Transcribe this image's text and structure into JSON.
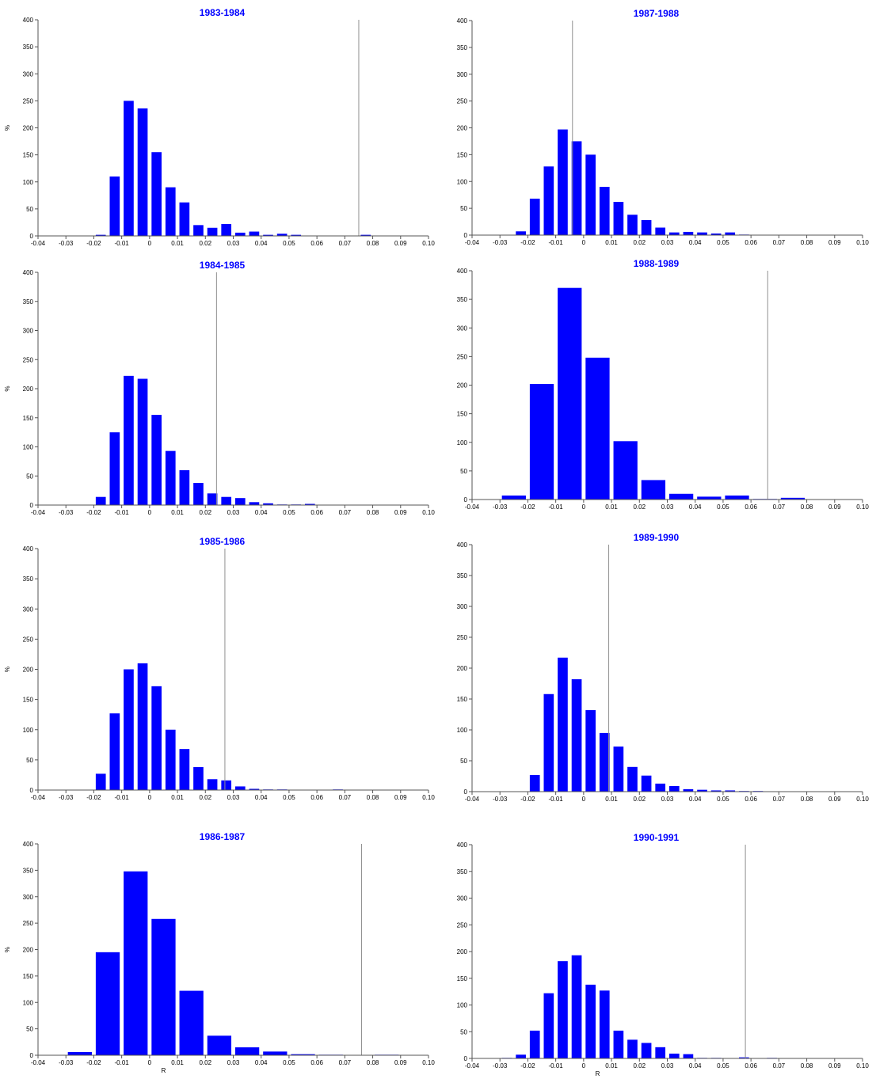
{
  "chart_data": [
    {
      "type": "bar",
      "title": "1983-1984",
      "xlabel": "",
      "ylabel": "%",
      "xlim": [
        -0.04,
        0.1
      ],
      "ylim": [
        0,
        400
      ],
      "xticks": [
        "-0.04",
        "-0.03",
        "-0.02",
        "-0.01",
        "0",
        "0.01",
        "0.02",
        "0.03",
        "0.04",
        "0.05",
        "0.06",
        "0.07",
        "0.08",
        "0.09",
        "0.10"
      ],
      "yticks": [
        "0",
        "50",
        "100",
        "150",
        "200",
        "250",
        "300",
        "350",
        "400"
      ],
      "bin_width": 0.005,
      "bar_color": "#0000ff",
      "bins": [
        {
          "x": -0.0175,
          "y": 2
        },
        {
          "x": -0.0125,
          "y": 110
        },
        {
          "x": -0.0075,
          "y": 250
        },
        {
          "x": -0.0025,
          "y": 236
        },
        {
          "x": 0.0025,
          "y": 155
        },
        {
          "x": 0.0075,
          "y": 90
        },
        {
          "x": 0.0125,
          "y": 62
        },
        {
          "x": 0.0175,
          "y": 20
        },
        {
          "x": 0.0225,
          "y": 15
        },
        {
          "x": 0.0275,
          "y": 22
        },
        {
          "x": 0.0325,
          "y": 6
        },
        {
          "x": 0.0375,
          "y": 8
        },
        {
          "x": 0.0425,
          "y": 2
        },
        {
          "x": 0.0475,
          "y": 4
        },
        {
          "x": 0.0525,
          "y": 2
        },
        {
          "x": 0.0775,
          "y": 2
        }
      ],
      "vline": 0.075
    },
    {
      "type": "bar",
      "title": "1984-1985",
      "xlabel": "",
      "ylabel": "%",
      "xlim": [
        -0.04,
        0.1
      ],
      "ylim": [
        0,
        400
      ],
      "xticks": [
        "-0.04",
        "-0.03",
        "-0.02",
        "-0.01",
        "0",
        "0.01",
        "0.02",
        "0.03",
        "0.04",
        "0.05",
        "0.06",
        "0.07",
        "0.08",
        "0.09",
        "0.10"
      ],
      "yticks": [
        "0",
        "50",
        "100",
        "150",
        "200",
        "250",
        "300",
        "350",
        "400"
      ],
      "bin_width": 0.005,
      "bar_color": "#0000ff",
      "bins": [
        {
          "x": -0.0175,
          "y": 14
        },
        {
          "x": -0.0125,
          "y": 125
        },
        {
          "x": -0.0075,
          "y": 222
        },
        {
          "x": -0.0025,
          "y": 217
        },
        {
          "x": 0.0025,
          "y": 155
        },
        {
          "x": 0.0075,
          "y": 93
        },
        {
          "x": 0.0125,
          "y": 60
        },
        {
          "x": 0.0175,
          "y": 38
        },
        {
          "x": 0.0225,
          "y": 20
        },
        {
          "x": 0.0275,
          "y": 14
        },
        {
          "x": 0.0325,
          "y": 12
        },
        {
          "x": 0.0375,
          "y": 5
        },
        {
          "x": 0.0425,
          "y": 3
        },
        {
          "x": 0.0475,
          "y": 1
        },
        {
          "x": 0.0525,
          "y": 1
        },
        {
          "x": 0.0575,
          "y": 2
        }
      ],
      "vline": 0.024
    },
    {
      "type": "bar",
      "title": "1985-1986",
      "xlabel": "",
      "ylabel": "%",
      "xlim": [
        -0.04,
        0.1
      ],
      "ylim": [
        0,
        400
      ],
      "xticks": [
        "-0.04",
        "-0.03",
        "-0.02",
        "-0.01",
        "0",
        "0.01",
        "0.02",
        "0.03",
        "0.04",
        "0.05",
        "0.06",
        "0.07",
        "0.08",
        "0.09",
        "0.10"
      ],
      "yticks": [
        "0",
        "50",
        "100",
        "150",
        "200",
        "250",
        "300",
        "350",
        "400"
      ],
      "bin_width": 0.005,
      "bar_color": "#0000ff",
      "bins": [
        {
          "x": -0.0175,
          "y": 27
        },
        {
          "x": -0.0125,
          "y": 127
        },
        {
          "x": -0.0075,
          "y": 200
        },
        {
          "x": -0.0025,
          "y": 210
        },
        {
          "x": 0.0025,
          "y": 172
        },
        {
          "x": 0.0075,
          "y": 100
        },
        {
          "x": 0.0125,
          "y": 68
        },
        {
          "x": 0.0175,
          "y": 38
        },
        {
          "x": 0.0225,
          "y": 18
        },
        {
          "x": 0.0275,
          "y": 16
        },
        {
          "x": 0.0325,
          "y": 6
        },
        {
          "x": 0.0375,
          "y": 2
        },
        {
          "x": 0.0425,
          "y": 1
        },
        {
          "x": 0.0475,
          "y": 1
        },
        {
          "x": 0.0675,
          "y": 1
        }
      ],
      "vline": 0.027
    },
    {
      "type": "bar",
      "title": "1986-1987",
      "xlabel": "R",
      "ylabel": "%",
      "xlim": [
        -0.04,
        0.1
      ],
      "ylim": [
        0,
        400
      ],
      "xticks": [
        "-0.04",
        "-0.03",
        "-0.02",
        "-0.01",
        "0",
        "0.01",
        "0.02",
        "0.03",
        "0.04",
        "0.05",
        "0.06",
        "0.07",
        "0.08",
        "0.09",
        "0.10"
      ],
      "yticks": [
        "0",
        "50",
        "100",
        "150",
        "200",
        "250",
        "300",
        "350",
        "400"
      ],
      "bin_width": 0.01,
      "bar_color": "#0000ff",
      "bins": [
        {
          "x": -0.025,
          "y": 6
        },
        {
          "x": -0.015,
          "y": 195
        },
        {
          "x": -0.005,
          "y": 348
        },
        {
          "x": 0.005,
          "y": 258
        },
        {
          "x": 0.015,
          "y": 122
        },
        {
          "x": 0.025,
          "y": 37
        },
        {
          "x": 0.035,
          "y": 15
        },
        {
          "x": 0.045,
          "y": 7
        },
        {
          "x": 0.055,
          "y": 2
        },
        {
          "x": 0.065,
          "y": 1
        },
        {
          "x": 0.085,
          "y": 1
        }
      ],
      "vline": 0.076
    },
    {
      "type": "bar",
      "title": "1987-1988",
      "xlabel": "",
      "ylabel": "",
      "xlim": [
        -0.04,
        0.1
      ],
      "ylim": [
        0,
        400
      ],
      "xticks": [
        "-0.04",
        "-0.03",
        "-0.02",
        "-0.01",
        "0",
        "0.01",
        "0.02",
        "0.03",
        "0.04",
        "0.05",
        "0.06",
        "0.07",
        "0.08",
        "0.09",
        "0.10"
      ],
      "yticks": [
        "0",
        "50",
        "100",
        "150",
        "200",
        "250",
        "300",
        "350",
        "400"
      ],
      "bin_width": 0.005,
      "bar_color": "#0000ff",
      "bins": [
        {
          "x": -0.0225,
          "y": 7
        },
        {
          "x": -0.0175,
          "y": 68
        },
        {
          "x": -0.0125,
          "y": 128
        },
        {
          "x": -0.0075,
          "y": 197
        },
        {
          "x": -0.0025,
          "y": 175
        },
        {
          "x": 0.0025,
          "y": 150
        },
        {
          "x": 0.0075,
          "y": 90
        },
        {
          "x": 0.0125,
          "y": 62
        },
        {
          "x": 0.0175,
          "y": 38
        },
        {
          "x": 0.0225,
          "y": 28
        },
        {
          "x": 0.0275,
          "y": 14
        },
        {
          "x": 0.0325,
          "y": 5
        },
        {
          "x": 0.0375,
          "y": 6
        },
        {
          "x": 0.0425,
          "y": 5
        },
        {
          "x": 0.0475,
          "y": 3
        },
        {
          "x": 0.0525,
          "y": 5
        },
        {
          "x": 0.0575,
          "y": 1
        }
      ],
      "vline": -0.004
    },
    {
      "type": "bar",
      "title": "1988-1989",
      "xlabel": "",
      "ylabel": "",
      "xlim": [
        -0.04,
        0.1
      ],
      "ylim": [
        0,
        400
      ],
      "xticks": [
        "-0.04",
        "-0.03",
        "-0.02",
        "-0.01",
        "0",
        "0.01",
        "0.02",
        "0.03",
        "0.04",
        "0.05",
        "0.06",
        "0.07",
        "0.08",
        "0.09",
        "0.10"
      ],
      "yticks": [
        "0",
        "50",
        "100",
        "150",
        "200",
        "250",
        "300",
        "350",
        "400"
      ],
      "bin_width": 0.01,
      "bar_color": "#0000ff",
      "bins": [
        {
          "x": -0.025,
          "y": 7
        },
        {
          "x": -0.015,
          "y": 202
        },
        {
          "x": -0.005,
          "y": 370
        },
        {
          "x": 0.005,
          "y": 248
        },
        {
          "x": 0.015,
          "y": 102
        },
        {
          "x": 0.025,
          "y": 34
        },
        {
          "x": 0.035,
          "y": 10
        },
        {
          "x": 0.045,
          "y": 5
        },
        {
          "x": 0.055,
          "y": 7
        },
        {
          "x": 0.065,
          "y": 1
        },
        {
          "x": 0.075,
          "y": 3
        }
      ],
      "vline": 0.066
    },
    {
      "type": "bar",
      "title": "1989-1990",
      "xlabel": "",
      "ylabel": "",
      "xlim": [
        -0.04,
        0.1
      ],
      "ylim": [
        0,
        400
      ],
      "xticks": [
        "-0.04",
        "-0.03",
        "-0.02",
        "-0.01",
        "0",
        "0.01",
        "0.02",
        "0.03",
        "0.04",
        "0.05",
        "0.06",
        "0.07",
        "0.08",
        "0.09",
        "0.10"
      ],
      "yticks": [
        "0",
        "50",
        "100",
        "150",
        "200",
        "250",
        "300",
        "350",
        "400"
      ],
      "bin_width": 0.005,
      "bar_color": "#0000ff",
      "bins": [
        {
          "x": -0.0175,
          "y": 27
        },
        {
          "x": -0.0125,
          "y": 158
        },
        {
          "x": -0.0075,
          "y": 217
        },
        {
          "x": -0.0025,
          "y": 182
        },
        {
          "x": 0.0025,
          "y": 132
        },
        {
          "x": 0.0075,
          "y": 95
        },
        {
          "x": 0.0125,
          "y": 73
        },
        {
          "x": 0.0175,
          "y": 40
        },
        {
          "x": 0.0225,
          "y": 26
        },
        {
          "x": 0.0275,
          "y": 13
        },
        {
          "x": 0.0325,
          "y": 9
        },
        {
          "x": 0.0375,
          "y": 4
        },
        {
          "x": 0.0425,
          "y": 3
        },
        {
          "x": 0.0475,
          "y": 2
        },
        {
          "x": 0.0525,
          "y": 2
        },
        {
          "x": 0.0575,
          "y": 1
        },
        {
          "x": 0.0625,
          "y": 1
        }
      ],
      "vline": 0.009
    },
    {
      "type": "bar",
      "title": "1990-1991",
      "xlabel": "R",
      "ylabel": "",
      "xlim": [
        -0.04,
        0.1
      ],
      "ylim": [
        0,
        400
      ],
      "xticks": [
        "-0.04",
        "-0.03",
        "-0.02",
        "-0.01",
        "0",
        "0.01",
        "0.02",
        "0.03",
        "0.04",
        "0.05",
        "0.06",
        "0.07",
        "0.08",
        "0.09",
        "0.10"
      ],
      "yticks": [
        "0",
        "50",
        "100",
        "150",
        "200",
        "250",
        "300",
        "350",
        "400"
      ],
      "bin_width": 0.005,
      "bar_color": "#0000ff",
      "bins": [
        {
          "x": -0.0275,
          "y": 1
        },
        {
          "x": -0.0225,
          "y": 7
        },
        {
          "x": -0.0175,
          "y": 52
        },
        {
          "x": -0.0125,
          "y": 122
        },
        {
          "x": -0.0075,
          "y": 182
        },
        {
          "x": -0.0025,
          "y": 193
        },
        {
          "x": 0.0025,
          "y": 138
        },
        {
          "x": 0.0075,
          "y": 127
        },
        {
          "x": 0.0125,
          "y": 52
        },
        {
          "x": 0.0175,
          "y": 35
        },
        {
          "x": 0.0225,
          "y": 29
        },
        {
          "x": 0.0275,
          "y": 21
        },
        {
          "x": 0.0325,
          "y": 9
        },
        {
          "x": 0.0375,
          "y": 8
        },
        {
          "x": 0.0425,
          "y": 1
        },
        {
          "x": 0.0475,
          "y": 1
        },
        {
          "x": 0.0575,
          "y": 2
        },
        {
          "x": 0.0675,
          "y": 1
        }
      ],
      "vline": 0.058
    }
  ]
}
